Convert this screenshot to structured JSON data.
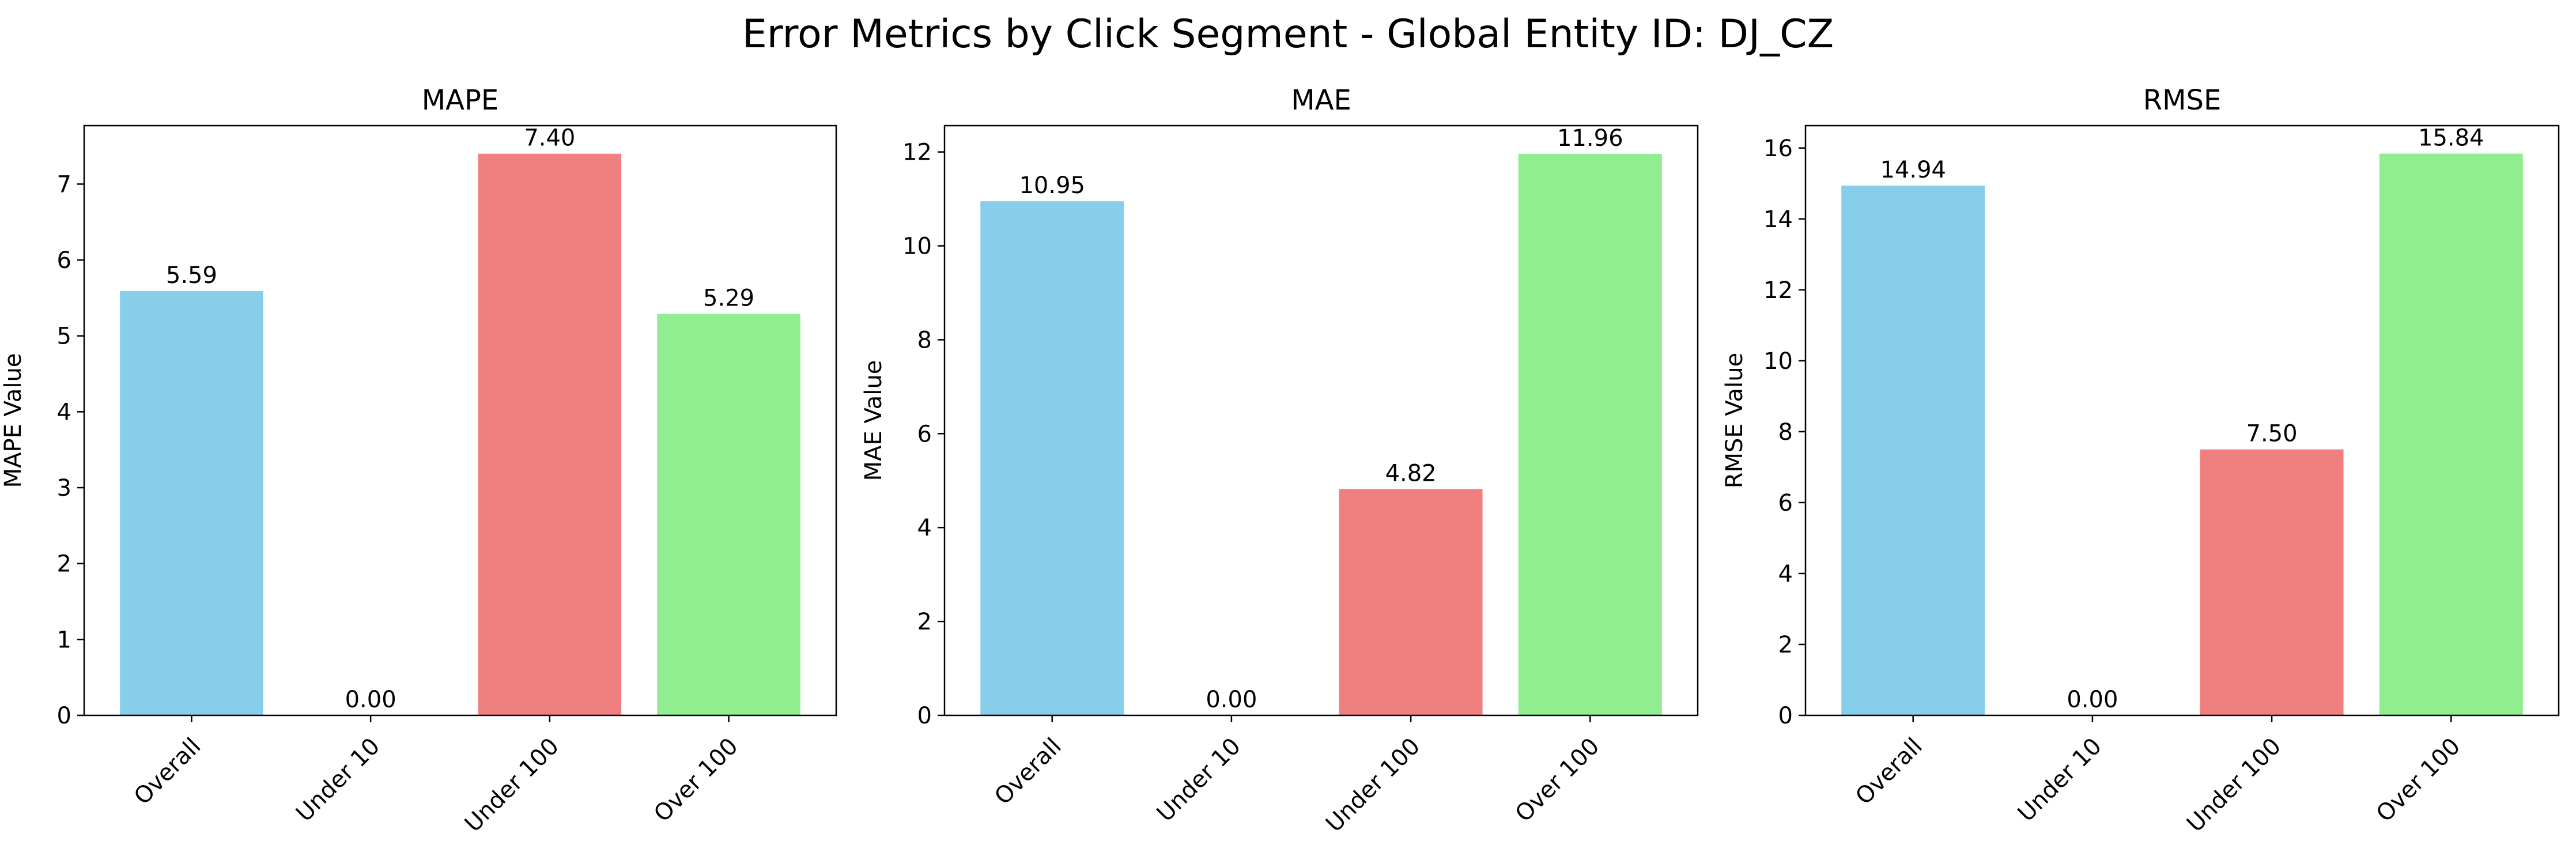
{
  "figure": {
    "title": "Error Metrics by Click Segment - Global Entity ID: DJ_CZ"
  },
  "colors": [
    "#87CEEB",
    "#87CEEB",
    "#F08080",
    "#90EE90"
  ],
  "chart_data": [
    {
      "type": "bar",
      "title": "MAPE",
      "xlabel": "",
      "ylabel": "MAPE Value",
      "categories": [
        "Overall",
        "Under 10",
        "Under 100",
        "Over 100"
      ],
      "values": [
        5.59,
        0.0,
        7.4,
        5.29
      ],
      "value_labels": [
        "5.59",
        "0.00",
        "7.40",
        "5.29"
      ],
      "ylim": [
        0,
        7.77
      ],
      "yticks": [
        0,
        1,
        2,
        3,
        4,
        5,
        6,
        7
      ],
      "grid": false,
      "legend": "none"
    },
    {
      "type": "bar",
      "title": "MAE",
      "xlabel": "",
      "ylabel": "MAE Value",
      "categories": [
        "Overall",
        "Under 10",
        "Under 100",
        "Over 100"
      ],
      "values": [
        10.95,
        0.0,
        4.82,
        11.96
      ],
      "value_labels": [
        "10.95",
        "0.00",
        "4.82",
        "11.96"
      ],
      "ylim": [
        0,
        12.56
      ],
      "yticks": [
        0,
        2,
        4,
        6,
        8,
        10,
        12
      ],
      "grid": false,
      "legend": "none"
    },
    {
      "type": "bar",
      "title": "RMSE",
      "xlabel": "",
      "ylabel": "RMSE Value",
      "categories": [
        "Overall",
        "Under 10",
        "Under 100",
        "Over 100"
      ],
      "values": [
        14.94,
        0.0,
        7.5,
        15.84
      ],
      "value_labels": [
        "14.94",
        "0.00",
        "7.50",
        "15.84"
      ],
      "ylim": [
        0,
        16.63
      ],
      "yticks": [
        0,
        2,
        4,
        6,
        8,
        10,
        12,
        14,
        16
      ],
      "grid": false,
      "legend": "none"
    }
  ]
}
